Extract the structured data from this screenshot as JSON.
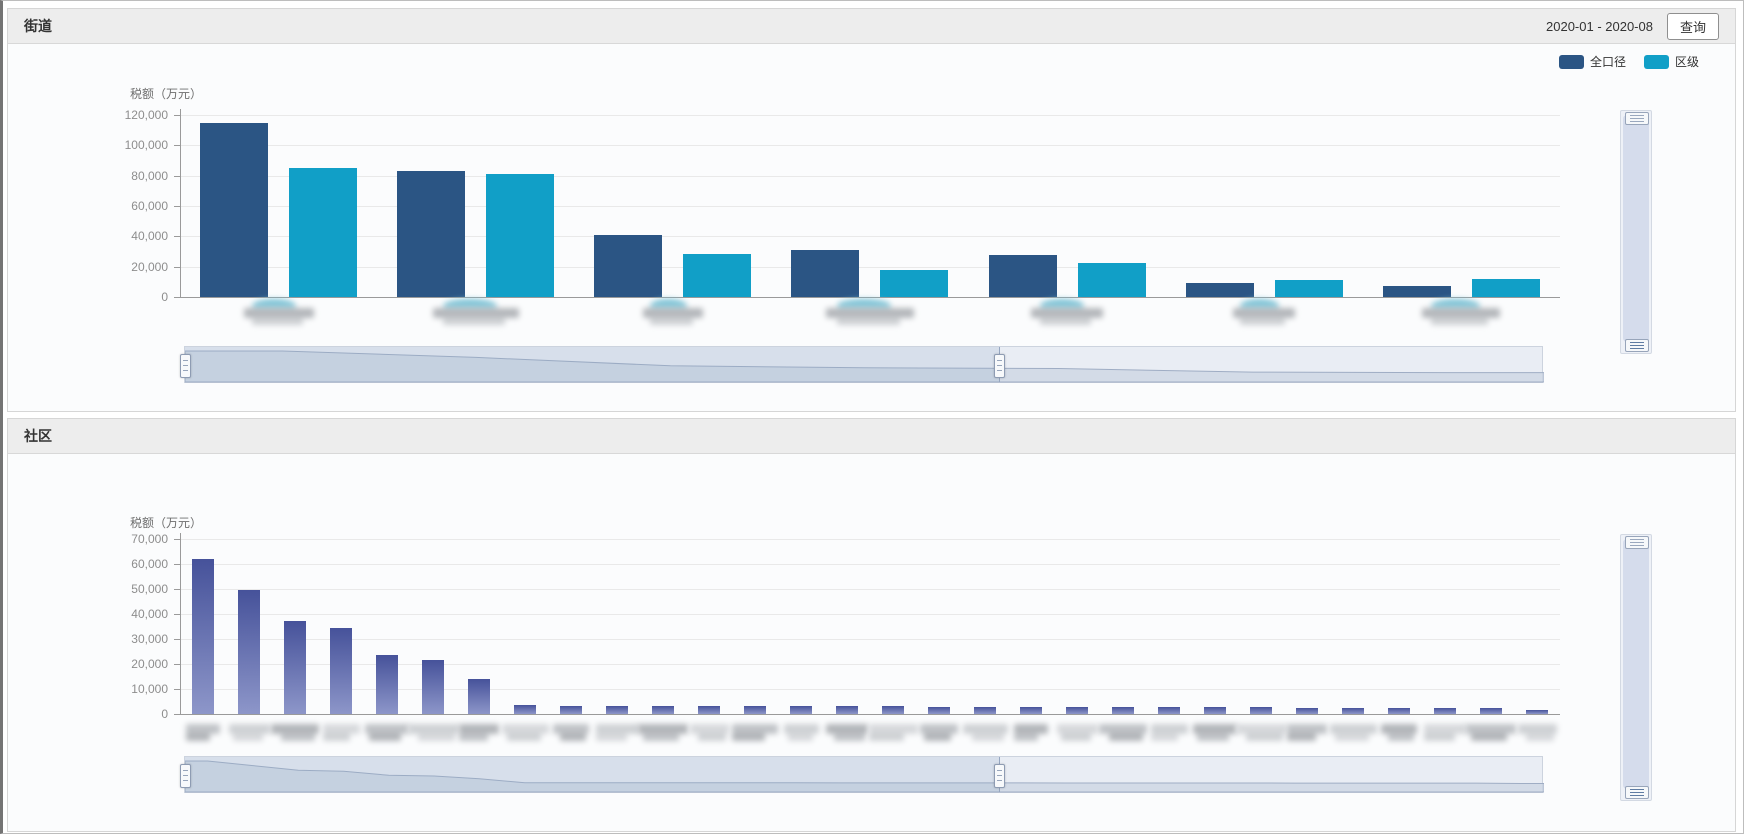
{
  "page": {
    "panels": [
      {
        "title": "街道",
        "toolbar": {
          "date_range": "2020-01 - 2020-08",
          "query_label": "查询"
        }
      },
      {
        "title": "社区"
      }
    ]
  },
  "chart_data": [
    {
      "type": "bar",
      "panel": "街道",
      "ylabel": "税额（万元）",
      "ylim": [
        0,
        120000
      ],
      "yticks": [
        0,
        20000,
        40000,
        60000,
        80000,
        100000,
        120000
      ],
      "ytick_labels": [
        "0",
        "20,000",
        "40,000",
        "60,000",
        "80,000",
        "100,000",
        "120,000"
      ],
      "n_categories": 7,
      "categories_note": "x-axis category labels are blurred / illegible in the screenshot",
      "grid": true,
      "legend_position": "top-right",
      "series": [
        {
          "name": "全口径",
          "color": "#2b5584",
          "values": [
            115000,
            83000,
            41000,
            31000,
            27500,
            9300,
            7200
          ]
        },
        {
          "name": "区级",
          "color": "#119fc7",
          "values": [
            85000,
            81000,
            28500,
            18000,
            22500,
            10900,
            12000
          ]
        }
      ],
      "datazoom_h": {
        "start_pct": 0,
        "end_pct": 60
      },
      "datazoom_v": {
        "start_pct": 0,
        "end_pct": 100
      }
    },
    {
      "type": "bar",
      "panel": "社区",
      "ylabel": "税额（万元）",
      "ylim": [
        0,
        70000
      ],
      "yticks": [
        0,
        10000,
        20000,
        30000,
        40000,
        50000,
        60000,
        70000
      ],
      "ytick_labels": [
        "0",
        "10,000",
        "20,000",
        "30,000",
        "40,000",
        "50,000",
        "60,000",
        "70,000"
      ],
      "n_categories": 30,
      "categories_note": "x-axis category labels are blurred / illegible in the screenshot",
      "grid": true,
      "legend_position": "none",
      "series": [
        {
          "name": "税额",
          "color_gradient": [
            "#46529a",
            "#8d96c9"
          ],
          "values": [
            62000,
            49500,
            37000,
            34500,
            23500,
            21500,
            14000,
            3400,
            3350,
            3300,
            3250,
            3200,
            3150,
            3100,
            3050,
            3000,
            2950,
            2900,
            2850,
            2800,
            2750,
            2700,
            2650,
            2600,
            2550,
            2500,
            2450,
            2400,
            2300,
            1400
          ]
        }
      ],
      "datazoom_h": {
        "start_pct": 0,
        "end_pct": 60
      },
      "datazoom_v": {
        "start_pct": 0,
        "end_pct": 100
      }
    }
  ]
}
